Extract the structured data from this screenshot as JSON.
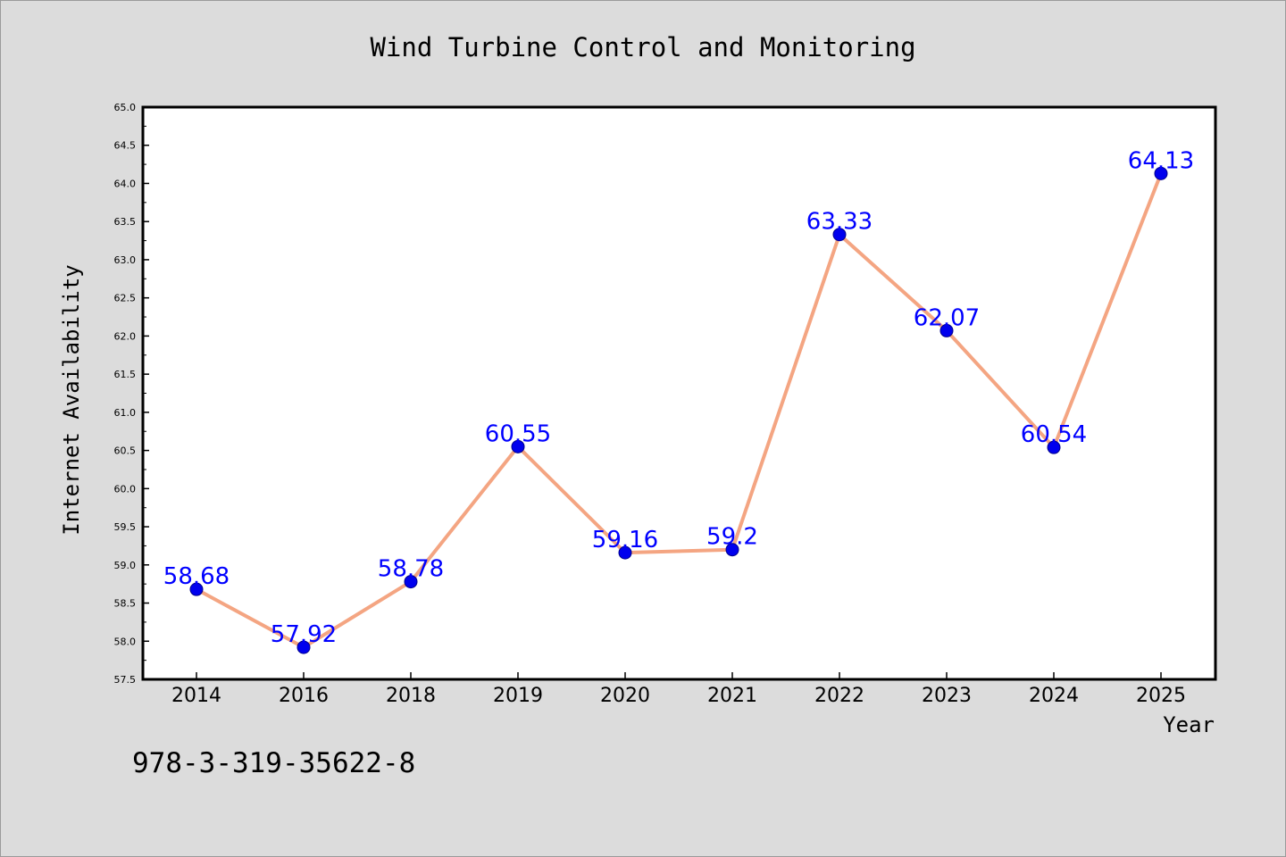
{
  "chart_data": {
    "type": "line",
    "title": "Wind Turbine Control and Monitoring",
    "xlabel": "Year",
    "ylabel": "Internet Availability",
    "categories": [
      "2014",
      "2016",
      "2018",
      "2019",
      "2020",
      "2021",
      "2022",
      "2023",
      "2024",
      "2025"
    ],
    "series": [
      {
        "values": [
          58.68,
          57.92,
          58.78,
          60.55,
          59.16,
          59.2,
          63.33,
          62.07,
          60.54,
          64.13
        ],
        "labels": [
          "58.68",
          "57.92",
          "58.78",
          "60.55",
          "59.16",
          "59.2",
          "63.33",
          "62.07",
          "60.54",
          "64.13"
        ]
      }
    ],
    "ylim": [
      57.5,
      65.0
    ],
    "yticks": [
      "57.5",
      "58.0",
      "58.5",
      "59.0",
      "59.5",
      "60.0",
      "60.5",
      "61.0",
      "61.5",
      "62.0",
      "62.5",
      "63.0",
      "63.5",
      "64.0",
      "64.5",
      "65.0"
    ],
    "grid": false,
    "colors": {
      "line": "#f4a582",
      "marker": "#0000ee",
      "data_label": "#0000ff",
      "background": "#dcdcdc",
      "plot_area": "#ffffff"
    }
  },
  "footer_text": "978-3-319-35622-8"
}
